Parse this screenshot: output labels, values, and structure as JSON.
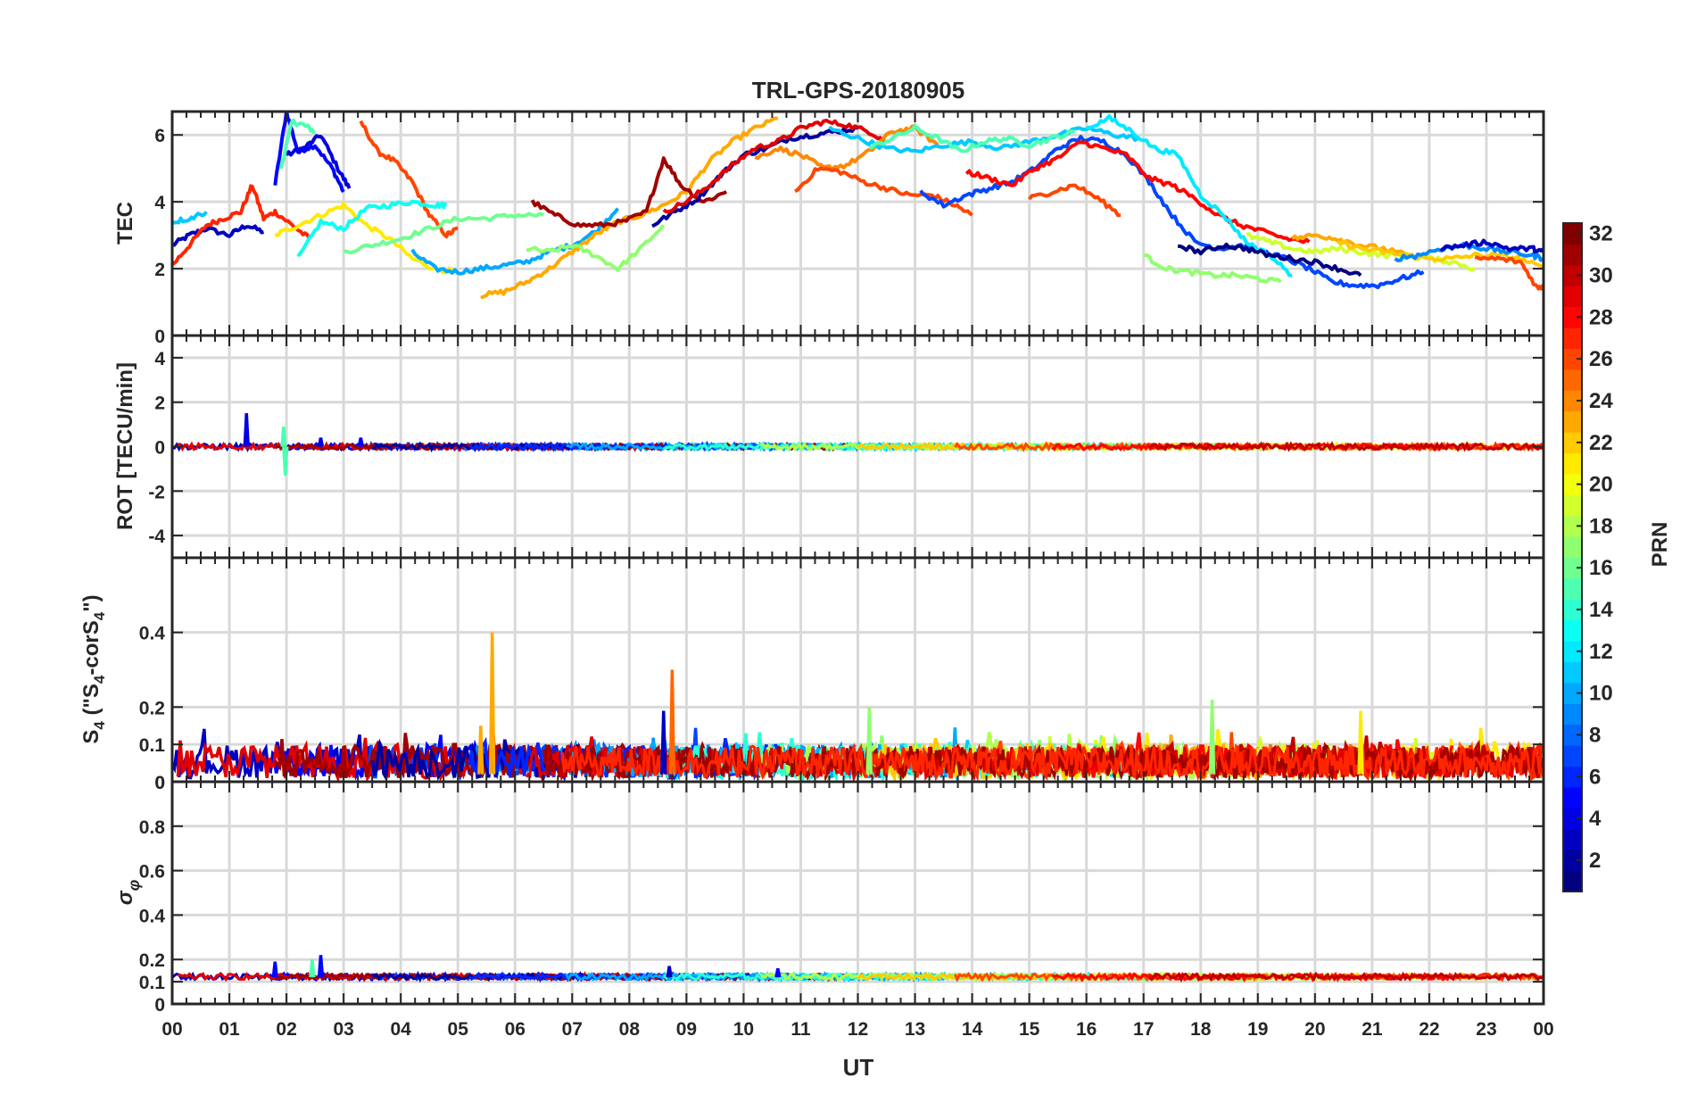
{
  "figure": {
    "title": "TRL-GPS-20180905",
    "xlabel": "UT",
    "x_tick_labels": [
      "00",
      "01",
      "02",
      "03",
      "04",
      "05",
      "06",
      "07",
      "08",
      "09",
      "10",
      "11",
      "12",
      "13",
      "14",
      "15",
      "16",
      "17",
      "18",
      "19",
      "20",
      "21",
      "22",
      "23",
      "00"
    ]
  },
  "colorbar": {
    "label": "PRN",
    "range": [
      1,
      32
    ],
    "tick_labels": [
      "2",
      "4",
      "6",
      "8",
      "10",
      "12",
      "14",
      "16",
      "18",
      "20",
      "22",
      "24",
      "26",
      "28",
      "30",
      "32"
    ],
    "colormap": "jet"
  },
  "chart_data": [
    {
      "type": "line",
      "panel": "TEC",
      "ylabel": "TEC",
      "xlim": [
        0,
        24
      ],
      "ylim": [
        0,
        6.7
      ],
      "y_tick_labels": [
        "0",
        "2",
        "4",
        "6"
      ],
      "grid": true,
      "series": [
        {
          "prn": 3,
          "x": [
            0.0,
            0.3,
            0.6,
            1.0,
            1.3,
            1.6
          ],
          "y": [
            2.7,
            3.0,
            3.2,
            3.0,
            3.3,
            3.1
          ]
        },
        {
          "prn": 5,
          "x": [
            1.8,
            2.0,
            2.2,
            2.5,
            2.8,
            3.0
          ],
          "y": [
            4.5,
            6.7,
            5.5,
            5.7,
            5.0,
            4.3
          ]
        },
        {
          "prn": 4,
          "x": [
            2.0,
            2.3,
            2.6,
            2.9,
            3.1
          ],
          "y": [
            5.4,
            5.6,
            6.0,
            5.0,
            4.4
          ]
        },
        {
          "prn": 15,
          "x": [
            1.9,
            2.1,
            2.3,
            2.5
          ],
          "y": [
            5.0,
            6.4,
            6.3,
            6.1
          ]
        },
        {
          "prn": 27,
          "x": [
            0.0,
            0.3,
            0.6,
            0.9,
            1.2,
            1.4,
            1.6,
            1.8,
            2.1,
            2.4
          ],
          "y": [
            2.1,
            2.7,
            3.3,
            3.5,
            3.7,
            4.5,
            3.5,
            3.7,
            3.3,
            2.9
          ]
        },
        {
          "prn": 26,
          "x": [
            3.3,
            3.6,
            3.9,
            4.2,
            4.5,
            4.8,
            5.0
          ],
          "y": [
            6.4,
            5.5,
            5.2,
            4.6,
            3.6,
            3.0,
            3.2
          ]
        },
        {
          "prn": 21,
          "x": [
            1.8,
            2.2,
            2.6,
            3.0,
            3.4,
            3.8,
            4.2,
            4.6,
            5.0
          ],
          "y": [
            3.0,
            3.3,
            3.6,
            3.9,
            3.3,
            2.9,
            2.3,
            2.0,
            1.9
          ]
        },
        {
          "prn": 13,
          "x": [
            2.2,
            2.6,
            3.0,
            3.4,
            3.8,
            4.2,
            4.6,
            4.8
          ],
          "y": [
            2.3,
            3.4,
            3.2,
            3.8,
            3.9,
            4.0,
            3.9,
            3.9
          ]
        },
        {
          "prn": 16,
          "x": [
            3.0,
            3.5,
            4.0,
            4.5,
            5.0,
            5.5,
            6.0,
            6.5
          ],
          "y": [
            2.5,
            2.7,
            2.9,
            3.2,
            3.5,
            3.5,
            3.6,
            3.6
          ]
        },
        {
          "prn": 10,
          "x": [
            4.2,
            4.6,
            5.0,
            5.4,
            5.8,
            6.2,
            6.6,
            7.0,
            7.4,
            7.8
          ],
          "y": [
            2.5,
            2.0,
            1.9,
            2.0,
            2.1,
            2.2,
            2.5,
            2.7,
            3.1,
            3.8
          ]
        },
        {
          "prn": 23,
          "x": [
            5.4,
            5.8,
            6.2,
            6.6,
            7.0,
            7.4,
            7.8,
            8.2,
            8.6,
            9.0,
            9.4,
            9.8,
            10.2,
            10.6
          ],
          "y": [
            1.2,
            1.3,
            1.6,
            2.0,
            2.5,
            3.0,
            3.4,
            3.6,
            3.9,
            4.3,
            5.2,
            5.8,
            6.2,
            6.5
          ]
        },
        {
          "prn": 17,
          "x": [
            6.2,
            6.6,
            7.0,
            7.4,
            7.8,
            8.2,
            8.6
          ],
          "y": [
            2.6,
            2.5,
            2.7,
            2.4,
            2.0,
            2.6,
            3.3
          ]
        },
        {
          "prn": 31,
          "x": [
            6.3,
            6.7,
            7.1,
            7.5,
            7.9,
            8.3,
            8.6,
            8.9,
            9.3,
            9.7
          ],
          "y": [
            4.0,
            3.6,
            3.3,
            3.3,
            3.4,
            3.7,
            5.3,
            4.5,
            4.0,
            4.3
          ]
        },
        {
          "prn": 2,
          "x": [
            8.4,
            8.8,
            9.2,
            9.6,
            10.0,
            10.4,
            10.8,
            11.2,
            11.6,
            12.0
          ],
          "y": [
            3.3,
            3.7,
            4.1,
            4.8,
            5.4,
            5.6,
            5.9,
            6.0,
            6.1,
            6.2
          ]
        },
        {
          "prn": 29,
          "x": [
            8.6,
            9.0,
            9.4,
            9.8,
            10.2,
            10.6,
            11.0,
            11.4,
            11.8,
            12.2,
            12.5
          ],
          "y": [
            3.7,
            4.0,
            4.5,
            5.1,
            5.6,
            5.8,
            6.2,
            6.4,
            6.3,
            6.1,
            5.8
          ]
        },
        {
          "prn": 24,
          "x": [
            10.2,
            10.6,
            11.0,
            11.4,
            11.8,
            12.2,
            12.6,
            13.0,
            13.4
          ],
          "y": [
            5.3,
            5.6,
            5.4,
            5.0,
            5.1,
            5.5,
            6.1,
            6.2,
            5.7
          ]
        },
        {
          "prn": 26,
          "x": [
            10.9,
            11.3,
            11.7,
            12.1,
            12.5,
            12.9,
            13.3,
            13.7,
            14.0
          ],
          "y": [
            4.3,
            5.0,
            4.9,
            4.6,
            4.4,
            4.2,
            4.2,
            3.9,
            3.6
          ]
        },
        {
          "prn": 11,
          "x": [
            11.5,
            12.0,
            12.5,
            13.0,
            13.5,
            14.0,
            14.5,
            15.0,
            15.5,
            16.0,
            16.5,
            16.9
          ],
          "y": [
            6.2,
            5.9,
            5.6,
            5.5,
            5.7,
            5.8,
            5.6,
            5.8,
            6.0,
            6.2,
            6.0,
            5.9
          ]
        },
        {
          "prn": 15,
          "x": [
            12.2,
            12.6,
            13.0,
            13.4,
            13.8,
            14.2,
            14.6,
            15.0,
            15.4,
            15.8
          ],
          "y": [
            5.6,
            5.9,
            6.2,
            5.9,
            5.5,
            5.8,
            5.9,
            5.7,
            5.9,
            6.1
          ]
        },
        {
          "prn": 7,
          "x": [
            13.1,
            13.5,
            13.9,
            14.3,
            14.7,
            15.1,
            15.5,
            15.9,
            16.3,
            16.7,
            17.1,
            17.5,
            17.9,
            18.3,
            18.7,
            19.1,
            19.5,
            19.9,
            20.3,
            20.7,
            21.1,
            21.5,
            21.9
          ],
          "y": [
            4.3,
            3.9,
            4.2,
            4.4,
            4.6,
            5.0,
            5.6,
            5.9,
            5.8,
            5.4,
            4.6,
            3.6,
            2.8,
            2.6,
            2.7,
            2.5,
            2.3,
            2.0,
            1.6,
            1.5,
            1.5,
            1.7,
            1.9
          ]
        },
        {
          "prn": 28,
          "x": [
            13.9,
            14.3,
            14.7,
            15.1,
            15.5,
            15.9,
            16.3,
            16.7,
            17.1,
            17.5,
            17.9,
            18.3,
            18.7,
            19.1,
            19.5,
            19.9
          ],
          "y": [
            4.9,
            4.7,
            4.5,
            5.0,
            5.3,
            5.8,
            5.6,
            5.4,
            4.7,
            4.5,
            4.1,
            3.6,
            3.3,
            3.1,
            2.9,
            2.8
          ]
        },
        {
          "prn": 26,
          "x": [
            15.0,
            15.4,
            15.8,
            16.2,
            16.6
          ],
          "y": [
            4.1,
            4.3,
            4.5,
            4.1,
            3.6
          ]
        },
        {
          "prn": 12,
          "x": [
            16.0,
            16.4,
            16.8,
            17.2,
            17.6,
            18.0,
            18.4,
            18.8,
            19.2,
            19.6
          ],
          "y": [
            6.2,
            6.5,
            6.1,
            5.6,
            5.4,
            4.2,
            3.6,
            2.8,
            2.4,
            1.8
          ]
        },
        {
          "prn": 17,
          "x": [
            17.0,
            17.4,
            17.8,
            18.2,
            18.6,
            19.0,
            19.4
          ],
          "y": [
            2.4,
            2.0,
            1.9,
            1.8,
            1.8,
            1.7,
            1.6
          ]
        },
        {
          "prn": 1,
          "x": [
            17.6,
            18.0,
            18.4,
            18.8,
            19.2,
            19.6,
            20.0,
            20.4,
            20.8
          ],
          "y": [
            2.7,
            2.5,
            2.7,
            2.6,
            2.4,
            2.3,
            2.2,
            2.0,
            1.8
          ]
        },
        {
          "prn": 19,
          "x": [
            18.8,
            19.2,
            19.6,
            20.0,
            20.4,
            20.8,
            21.2,
            21.6,
            22.0,
            22.4,
            22.8
          ],
          "y": [
            3.0,
            2.8,
            2.6,
            2.5,
            2.6,
            2.5,
            2.4,
            2.4,
            2.3,
            2.2,
            2.0
          ]
        },
        {
          "prn": 23,
          "x": [
            19.6,
            20.0,
            20.4,
            20.8,
            21.2,
            21.6
          ],
          "y": [
            2.9,
            3.0,
            2.9,
            2.7,
            2.6,
            2.4
          ]
        },
        {
          "prn": 22,
          "x": [
            20.4,
            20.8,
            21.2,
            21.6,
            22.0,
            22.4,
            22.8,
            23.2,
            23.6,
            24.0
          ],
          "y": [
            2.8,
            2.6,
            2.5,
            2.4,
            2.3,
            2.3,
            2.4,
            2.4,
            2.3,
            2.0
          ]
        },
        {
          "prn": 9,
          "x": [
            21.4,
            21.8,
            22.2,
            22.6,
            23.0,
            23.4,
            23.8,
            24.0
          ],
          "y": [
            2.3,
            2.4,
            2.6,
            2.7,
            2.6,
            2.5,
            2.4,
            2.3
          ]
        },
        {
          "prn": 3,
          "x": [
            22.2,
            22.6,
            23.0,
            23.4,
            23.8,
            24.0
          ],
          "y": [
            2.6,
            2.7,
            2.8,
            2.6,
            2.6,
            2.5
          ]
        },
        {
          "prn": 26,
          "x": [
            22.8,
            23.2,
            23.6,
            23.9,
            24.0
          ],
          "y": [
            2.3,
            2.3,
            2.2,
            1.4,
            1.5
          ]
        },
        {
          "prn": 11,
          "x": [
            0.0,
            0.3,
            0.6
          ],
          "y": [
            3.4,
            3.5,
            3.7
          ]
        }
      ]
    },
    {
      "type": "line",
      "panel": "ROT",
      "ylabel": "ROT [TECU/min]",
      "xlim": [
        0,
        24
      ],
      "ylim": [
        -5,
        5
      ],
      "y_tick_labels": [
        "-4",
        "-2",
        "0",
        "2",
        "4"
      ],
      "grid": true,
      "baseline": 0,
      "spikes": [
        {
          "x": 1.3,
          "y": 1.5,
          "prn": 4
        },
        {
          "x": 1.95,
          "y": 0.9,
          "prn": 15
        },
        {
          "x": 1.98,
          "y": -1.3,
          "prn": 15
        },
        {
          "x": 3.3,
          "y": 0.4,
          "prn": 5
        },
        {
          "x": 2.6,
          "y": 0.4,
          "prn": 4
        }
      ]
    },
    {
      "type": "line",
      "panel": "S4",
      "ylabel": "S4 (\"S4-corS4\")",
      "xlim": [
        0,
        24
      ],
      "ylim": [
        0,
        0.6
      ],
      "y_tick_labels": [
        "0",
        "0",
        "0.1",
        "0.2",
        "0.4"
      ],
      "grid": true,
      "spikes": [
        {
          "x": 5.6,
          "y": 0.4,
          "prn": 23
        },
        {
          "x": 8.75,
          "y": 0.3,
          "prn": 25
        },
        {
          "x": 8.6,
          "y": 0.19,
          "prn": 3
        },
        {
          "x": 18.2,
          "y": 0.22,
          "prn": 17
        },
        {
          "x": 12.2,
          "y": 0.2,
          "prn": 17
        },
        {
          "x": 20.8,
          "y": 0.19,
          "prn": 21
        },
        {
          "x": 5.4,
          "y": 0.15,
          "prn": 23
        }
      ]
    },
    {
      "type": "line",
      "panel": "sigma_phi",
      "ylabel": "σφ",
      "xlim": [
        0,
        24
      ],
      "ylim": [
        0,
        1
      ],
      "y_tick_labels": [
        "0",
        "0.1",
        "0.2",
        "0.4",
        "0.6",
        "0.8"
      ],
      "grid": true,
      "baseline": 0.12,
      "spikes": [
        {
          "x": 1.8,
          "y": 0.19,
          "prn": 5
        },
        {
          "x": 2.6,
          "y": 0.22,
          "prn": 5
        },
        {
          "x": 2.45,
          "y": 0.2,
          "prn": 15
        },
        {
          "x": 8.7,
          "y": 0.17,
          "prn": 3
        },
        {
          "x": 10.6,
          "y": 0.16,
          "prn": 5
        }
      ]
    }
  ]
}
